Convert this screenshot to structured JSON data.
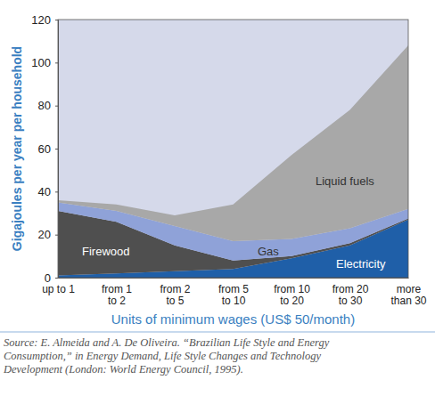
{
  "chart_data": {
    "type": "area",
    "stacked": true,
    "x_label": "Units of minimum wages (US$ 50/month)",
    "y_label": "Gigajoules per year per household",
    "categories": [
      "up to 1",
      "from 1\nto 2",
      "from 2\nto 5",
      "from 5\nto 10",
      "from 10\nto 20",
      "from 20\nto 30",
      "more\nthan 30"
    ],
    "series": [
      {
        "name": "Electricity",
        "color": "#1f5fa8",
        "values": [
          1,
          2,
          3,
          4,
          9,
          15,
          27
        ]
      },
      {
        "name": "Firewood",
        "color": "#4f4f4f",
        "values": [
          30,
          24,
          12,
          4,
          1,
          1,
          0.5
        ]
      },
      {
        "name": "Gas",
        "color": "#8fa2d8",
        "values": [
          4,
          5,
          9,
          9,
          8,
          7,
          4.5
        ]
      },
      {
        "name": "Liquid fuels",
        "color": "#a8a8a8",
        "values": [
          1,
          3,
          5,
          17,
          39,
          55,
          76
        ]
      }
    ],
    "ylim": [
      0,
      120
    ],
    "yticks": [
      0,
      20,
      40,
      60,
      80,
      100,
      120
    ],
    "grid": false,
    "source": [
      "Source: E. Almeida and A. De Oliveira. “Brazilian Life Style and Energy",
      "Consumption,” in Energy Demand, Life Style Changes and Technology",
      "Development (London: World Energy Council, 1995)."
    ]
  }
}
